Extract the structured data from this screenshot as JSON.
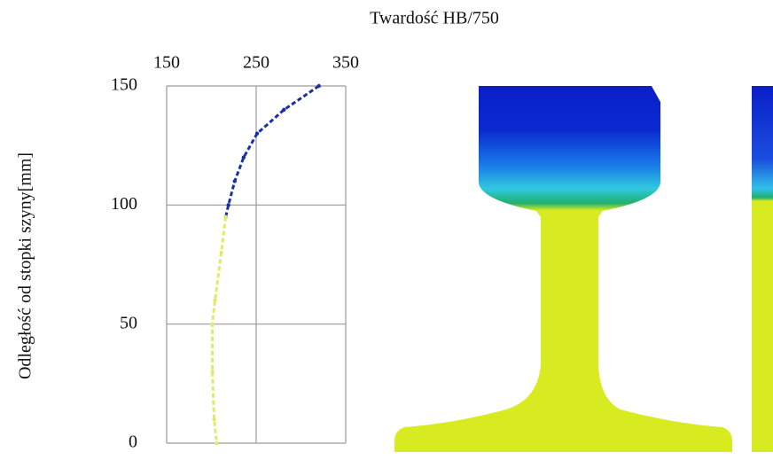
{
  "chart_data": {
    "type": "line",
    "title": "Twardość HB/750",
    "y_label": "Odległość od stopki szyny[mm]",
    "xlim": [
      150,
      350
    ],
    "xticks": [
      150,
      250,
      350
    ],
    "ylim": [
      0,
      150
    ],
    "yticks": [
      0,
      50,
      100,
      150
    ],
    "grid": true,
    "series": [
      {
        "color": "#1a2fa8",
        "x": [
          320,
          281,
          251,
          236,
          226,
          219,
          216
        ],
        "values": [
          150,
          140,
          130,
          120,
          110,
          100,
          95
        ]
      },
      {
        "color": "#e2e86a",
        "x": [
          216,
          211,
          204,
          201,
          201,
          203,
          206
        ],
        "values": [
          95,
          80,
          60,
          50,
          30,
          10,
          0
        ]
      }
    ]
  }
}
